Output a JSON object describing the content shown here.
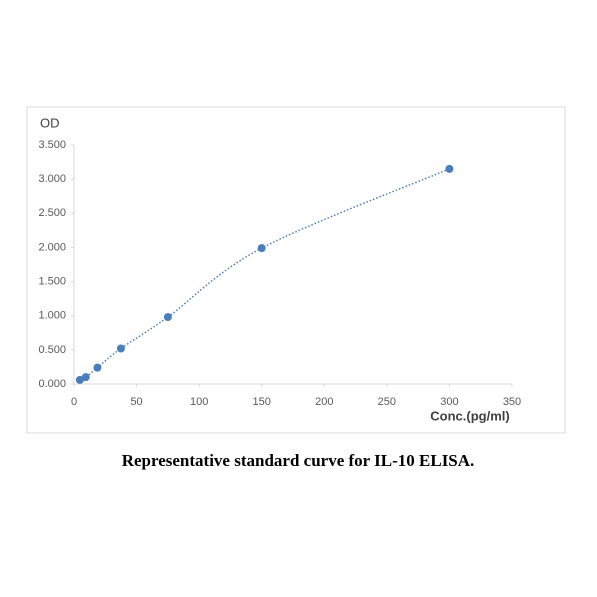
{
  "chart_data": {
    "type": "scatter",
    "y_label": "OD",
    "x_label": "Conc.(pg/ml)",
    "caption": "Representative standard curve for IL-10 ELISA.",
    "series": [
      {
        "color": "#4a7ebb",
        "x": [
          4.69,
          9.38,
          18.75,
          37.5,
          75,
          150,
          300
        ],
        "values": [
          0.06,
          0.1,
          0.24,
          0.52,
          0.98,
          1.99,
          3.15
        ]
      }
    ],
    "xlim": [
      0,
      350
    ],
    "xticks": [
      0,
      50,
      100,
      150,
      200,
      250,
      300,
      350
    ],
    "ylim": [
      0,
      3.5
    ],
    "yticks": [
      {
        "value": 0,
        "label": "0.000"
      },
      {
        "value": 0.5,
        "label": "0.500"
      },
      {
        "value": 1,
        "label": "1.000"
      },
      {
        "value": 1.5,
        "label": "1.500"
      },
      {
        "value": 2,
        "label": "2.000"
      },
      {
        "value": 2.5,
        "label": "2.500"
      },
      {
        "value": 3,
        "label": "3.000"
      },
      {
        "value": 3.5,
        "label": "3.500"
      }
    ],
    "trendline": true
  }
}
